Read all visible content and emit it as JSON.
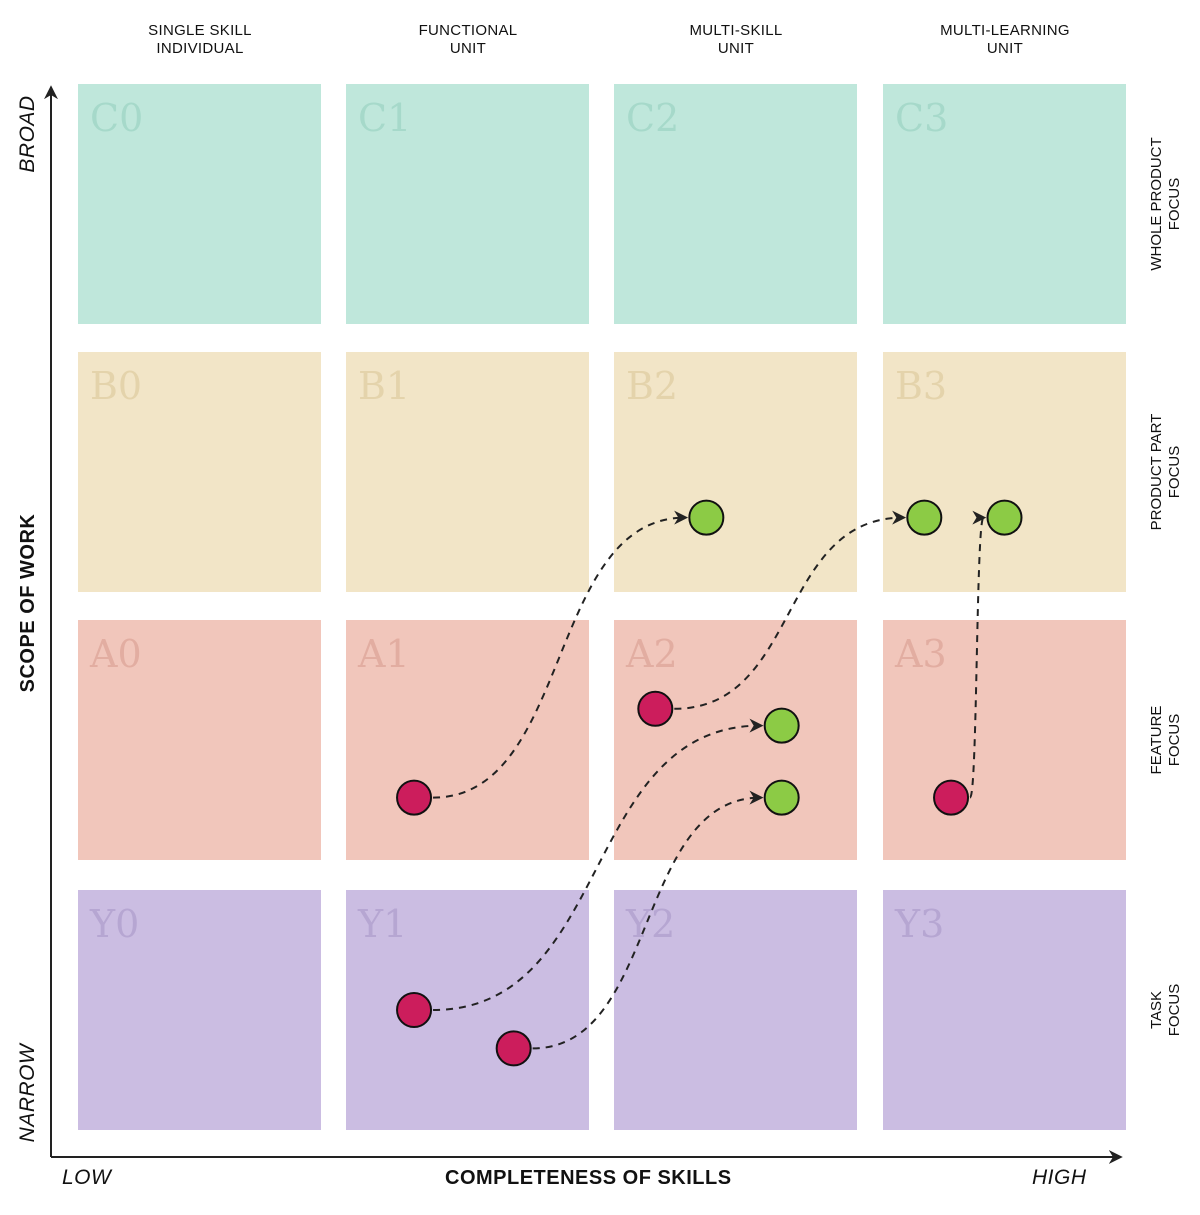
{
  "columns": [
    {
      "line1": "SINGLE SKILL",
      "line2": "INDIVIDUAL"
    },
    {
      "line1": "FUNCTIONAL",
      "line2": "UNIT"
    },
    {
      "line1": "MULTI-SKILL",
      "line2": "UNIT"
    },
    {
      "line1": "MULTI-LEARNING",
      "line2": "UNIT"
    }
  ],
  "rows": [
    {
      "line1": "WHOLE PRODUCT",
      "line2": "FOCUS",
      "color": "#bfe7db",
      "label_color": "#a6d9ca"
    },
    {
      "line1": "PRODUCT PART",
      "line2": "FOCUS",
      "color": "#f2e5c7",
      "label_color": "#e4d3ab"
    },
    {
      "line1": "FEATURE",
      "line2": "FOCUS",
      "color": "#f1c6bb",
      "label_color": "#e2ada1"
    },
    {
      "line1": "TASK",
      "line2": "FOCUS",
      "color": "#cbbde2",
      "label_color": "#b6a6d2"
    }
  ],
  "cells": [
    [
      "C0",
      "C1",
      "C2",
      "C3"
    ],
    [
      "B0",
      "B1",
      "B2",
      "B3"
    ],
    [
      "A0",
      "A1",
      "A2",
      "A3"
    ],
    [
      "Y0",
      "Y1",
      "Y2",
      "Y3"
    ]
  ],
  "axes": {
    "y_title": "SCOPE OF WORK",
    "y_top": "BROAD",
    "y_bottom": "NARROW",
    "x_title": "COMPLETENESS OF SKILLS",
    "x_left": "LOW",
    "x_right": "HIGH"
  },
  "colors": {
    "start_dot": "#cc1d5c",
    "end_dot": "#8ccb45",
    "line": "#222222"
  },
  "transitions": [
    {
      "from_cell": "A1",
      "from": [
        0.28,
        0.74
      ],
      "to_cell": "B2",
      "to": [
        0.38,
        0.69
      ]
    },
    {
      "from_cell": "A2",
      "from": [
        0.17,
        0.37
      ],
      "to_cell": "B3",
      "to": [
        0.17,
        0.69
      ]
    },
    {
      "from_cell": "Y1",
      "from": [
        0.28,
        0.5
      ],
      "to_cell": "A2",
      "to": [
        0.69,
        0.44
      ]
    },
    {
      "from_cell": "Y1",
      "from": [
        0.69,
        0.66
      ],
      "to_cell": "A2",
      "to": [
        0.69,
        0.74
      ]
    },
    {
      "from_cell": "A3",
      "from": [
        0.28,
        0.74
      ],
      "to_cell": "B3",
      "to": [
        0.5,
        0.69
      ]
    }
  ]
}
